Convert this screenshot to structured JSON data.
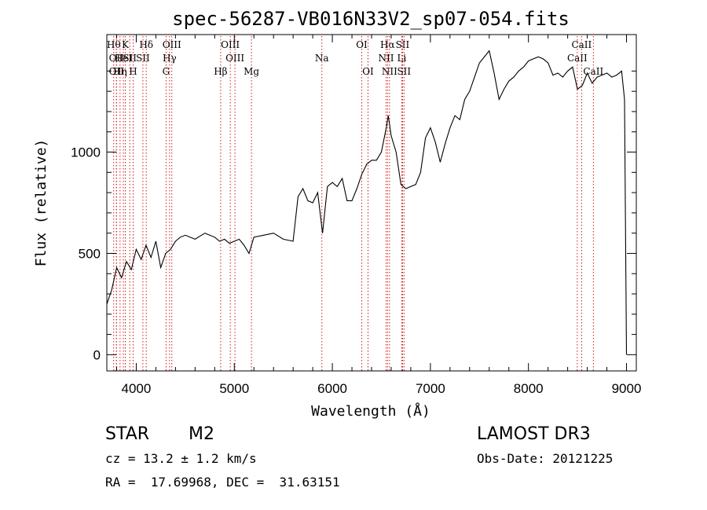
{
  "chart_data": {
    "type": "line",
    "title": "spec-56287-VB016N33V2_sp07-054.fits",
    "xlabel": "Wavelength (Å)",
    "ylabel": "Flux (relative)",
    "xlim": [
      3700,
      9100
    ],
    "ylim": [
      -80,
      1580
    ],
    "x_ticks": [
      4000,
      5000,
      6000,
      7000,
      8000,
      9000
    ],
    "x_tick_labels": [
      "4000",
      "5000",
      "6000",
      "7000",
      "8000",
      "9000"
    ],
    "y_ticks": [
      0,
      500,
      1000
    ],
    "y_tick_labels": [
      "0",
      "500",
      "1000"
    ],
    "grid": false,
    "series": [
      {
        "color": "#000000",
        "x": [
          3700,
          3750,
          3800,
          3850,
          3900,
          3950,
          4000,
          4050,
          4100,
          4150,
          4200,
          4250,
          4300,
          4350,
          4400,
          4450,
          4500,
          4600,
          4700,
          4800,
          4850,
          4900,
          4950,
          5000,
          5050,
          5100,
          5150,
          5200,
          5300,
          5400,
          5500,
          5600,
          5650,
          5700,
          5750,
          5800,
          5850,
          5900,
          5950,
          6000,
          6050,
          6100,
          6150,
          6200,
          6250,
          6300,
          6350,
          6400,
          6450,
          6500,
          6550,
          6570,
          6600,
          6650,
          6700,
          6750,
          6800,
          6850,
          6900,
          6950,
          7000,
          7050,
          7100,
          7150,
          7200,
          7250,
          7300,
          7350,
          7400,
          7450,
          7500,
          7550,
          7600,
          7650,
          7700,
          7750,
          7800,
          7850,
          7900,
          7950,
          8000,
          8050,
          8100,
          8150,
          8200,
          8250,
          8300,
          8350,
          8400,
          8450,
          8500,
          8550,
          8600,
          8650,
          8700,
          8750,
          8800,
          8850,
          8900,
          8950,
          8980,
          9000
        ],
        "y": [
          250,
          320,
          430,
          380,
          460,
          420,
          520,
          470,
          540,
          480,
          560,
          430,
          500,
          520,
          560,
          580,
          590,
          570,
          600,
          580,
          560,
          570,
          550,
          560,
          570,
          540,
          500,
          580,
          590,
          600,
          570,
          560,
          780,
          820,
          760,
          750,
          800,
          600,
          830,
          850,
          830,
          870,
          760,
          760,
          820,
          890,
          940,
          960,
          960,
          1000,
          1120,
          1180,
          1080,
          1000,
          840,
          820,
          830,
          840,
          900,
          1070,
          1120,
          1050,
          950,
          1040,
          1120,
          1180,
          1160,
          1260,
          1300,
          1370,
          1440,
          1470,
          1500,
          1390,
          1260,
          1310,
          1350,
          1370,
          1400,
          1420,
          1450,
          1460,
          1470,
          1460,
          1440,
          1380,
          1390,
          1370,
          1400,
          1420,
          1310,
          1330,
          1390,
          1340,
          1370,
          1380,
          1390,
          1370,
          1380,
          1400,
          1260,
          0
        ]
      }
    ],
    "line_markers": [
      {
        "x": 3770,
        "label": "Hθ",
        "row": 0
      },
      {
        "x": 3798,
        "label": "OII",
        "row": 1
      },
      {
        "x": 3798,
        "label": "OII",
        "row": 2
      },
      {
        "x": 3835,
        "label": "Hη",
        "row": 2
      },
      {
        "x": 3869,
        "label": "HeI",
        "row": 1
      },
      {
        "x": 3889,
        "label": "K",
        "row": 0
      },
      {
        "x": 3934,
        "label": "SII",
        "row": 1
      },
      {
        "x": 3968,
        "label": "H",
        "row": 2
      },
      {
        "x": 4102,
        "label": "Hδ",
        "row": 0
      },
      {
        "x": 4068,
        "label": "SII",
        "row": 1
      },
      {
        "x": 4340,
        "label": "Hγ",
        "row": 1
      },
      {
        "x": 4304,
        "label": "G",
        "row": 2
      },
      {
        "x": 4363,
        "label": "OIII",
        "row": 0
      },
      {
        "x": 4861,
        "label": "Hβ",
        "row": 2
      },
      {
        "x": 4959,
        "label": "OIII",
        "row": 0
      },
      {
        "x": 5007,
        "label": "OIII",
        "row": 1
      },
      {
        "x": 5175,
        "label": "Mg",
        "row": 2
      },
      {
        "x": 5893,
        "label": "Na",
        "row": 1
      },
      {
        "x": 6300,
        "label": "OI",
        "row": 0
      },
      {
        "x": 6364,
        "label": "OI",
        "row": 2
      },
      {
        "x": 6548,
        "label": "NII",
        "row": 1
      },
      {
        "x": 6563,
        "label": "Hα",
        "row": 0
      },
      {
        "x": 6583,
        "label": "NII",
        "row": 2
      },
      {
        "x": 6708,
        "label": "Li",
        "row": 1
      },
      {
        "x": 6716,
        "label": "SII",
        "row": 0
      },
      {
        "x": 6731,
        "label": "SII",
        "row": 2
      },
      {
        "x": 8498,
        "label": "CaII",
        "row": 1
      },
      {
        "x": 8542,
        "label": "CaII",
        "row": 0
      },
      {
        "x": 8662,
        "label": "CaII",
        "row": 2
      }
    ]
  },
  "info": {
    "class": "STAR",
    "subclass": "M2",
    "survey": "LAMOST DR3",
    "redshift": "cz = 13.2 ± 1.2 km/s",
    "obs_date": "Obs-Date: 20121225",
    "coords": "RA =  17.69968, DEC =  31.63151"
  }
}
